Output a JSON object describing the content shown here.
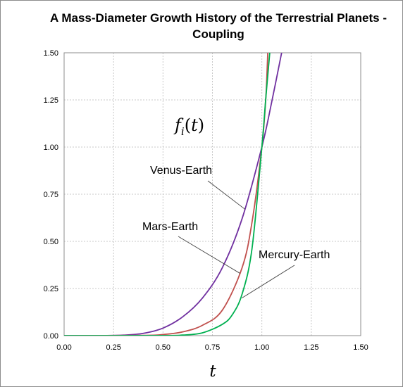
{
  "chart_data": {
    "type": "line",
    "title": "A Mass-Diameter Growth History of  the Terrestrial Planets - Coupling",
    "xlabel": "t",
    "ylabel": "",
    "formula_label": "f_i(t)",
    "xlim": [
      0,
      1.5
    ],
    "ylim": [
      0,
      1.5
    ],
    "x_ticks": [
      "0.00",
      "0.25",
      "0.50",
      "0.75",
      "1.00",
      "1.25",
      "1.50"
    ],
    "y_ticks": [
      "0.00",
      "0.25",
      "0.50",
      "0.75",
      "1.00",
      "1.25",
      "1.50"
    ],
    "grid": true,
    "legend": "none",
    "series": [
      {
        "name": "Venus-Earth",
        "color": "#7030a0",
        "x": [
          0,
          0.2,
          0.3,
          0.4,
          0.5,
          0.6,
          0.7,
          0.8,
          0.9,
          1.0,
          1.05,
          1.1
        ],
        "y": [
          0,
          0.0002,
          0.0025,
          0.012,
          0.04,
          0.1,
          0.2,
          0.36,
          0.62,
          1.0,
          1.24,
          1.5
        ]
      },
      {
        "name": "Mars-Earth",
        "color": "#c0504d",
        "x": [
          0,
          0.4,
          0.5,
          0.6,
          0.7,
          0.8,
          0.9,
          0.95,
          1.0,
          1.02,
          1.03
        ],
        "y": [
          0,
          0.0015,
          0.006,
          0.02,
          0.055,
          0.135,
          0.36,
          0.6,
          1.0,
          1.26,
          1.5
        ]
      },
      {
        "name": "Mercury-Earth",
        "color": "#00b050",
        "x": [
          0,
          0.5,
          0.6,
          0.7,
          0.8,
          0.85,
          0.9,
          0.95,
          1.0,
          1.02,
          1.04
        ],
        "y": [
          0,
          0.0003,
          0.003,
          0.015,
          0.06,
          0.11,
          0.22,
          0.46,
          1.0,
          1.26,
          1.5
        ]
      }
    ],
    "annotations": [
      {
        "text": "Venus-Earth",
        "series": "Venus-Earth",
        "point": [
          0.915,
          0.67
        ]
      },
      {
        "text": "Mars-Earth",
        "series": "Mars-Earth",
        "point": [
          0.89,
          0.33
        ]
      },
      {
        "text": "Mercury-Earth",
        "series": "Mercury-Earth",
        "point": [
          0.9,
          0.2
        ]
      }
    ]
  }
}
